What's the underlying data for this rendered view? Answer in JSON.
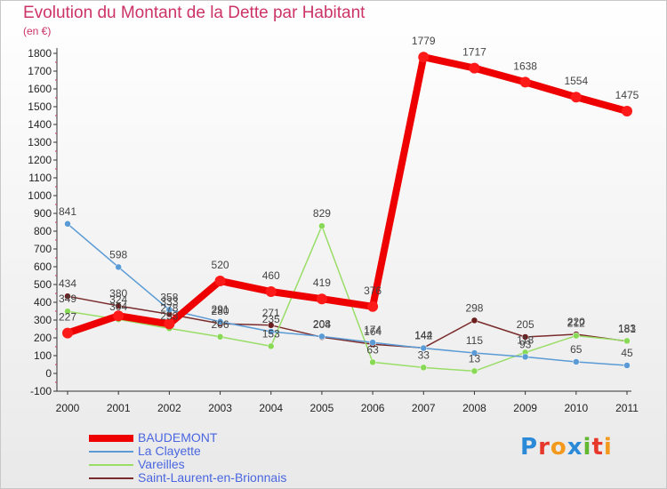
{
  "title": "Evolution du Montant de la Dette par Habitant",
  "unit": "(en €)",
  "logo": [
    "P",
    "r",
    "o",
    "x",
    "i",
    "t",
    "i"
  ],
  "chart_data": {
    "type": "line",
    "x": [
      "2000",
      "2001",
      "2002",
      "2003",
      "2004",
      "2005",
      "2006",
      "2007",
      "2008",
      "2009",
      "2010",
      "2011"
    ],
    "ylim": [
      -100,
      1800
    ],
    "yticks": [
      -100,
      0,
      100,
      200,
      300,
      400,
      500,
      600,
      700,
      800,
      900,
      1000,
      1100,
      1200,
      1300,
      1400,
      1500,
      1600,
      1700,
      1800
    ],
    "grid": false,
    "legend": "bottom-left",
    "series": [
      {
        "name": "BAUDEMONT",
        "color": "#ee0000",
        "point_color": "#ff1a1a",
        "width": 8,
        "values": [
          227,
          324,
          278,
          520,
          460,
          419,
          376,
          1779,
          1717,
          1638,
          1554,
          1475
        ]
      },
      {
        "name": "La Clayette",
        "color": "#5b9bd5",
        "point_color": "#5b9bd5",
        "width": 1.5,
        "values": [
          841,
          598,
          358,
          291,
          235,
          208,
          174,
          142,
          115,
          93,
          65,
          45
        ]
      },
      {
        "name": "Vareilles",
        "color": "#99dd66",
        "point_color": "#88d955",
        "width": 1.5,
        "values": [
          349,
          304,
          253,
          206,
          153,
          829,
          63,
          33,
          13,
          118,
          212,
          183
        ]
      },
      {
        "name": "Saint-Laurent-en-Brionnais",
        "color": "#7a2b2b",
        "point_color": "#6b1f1f",
        "width": 1.5,
        "values": [
          434,
          380,
          333,
          280,
          271,
          204,
          164,
          144,
          298,
          205,
          220,
          181
        ]
      }
    ]
  }
}
